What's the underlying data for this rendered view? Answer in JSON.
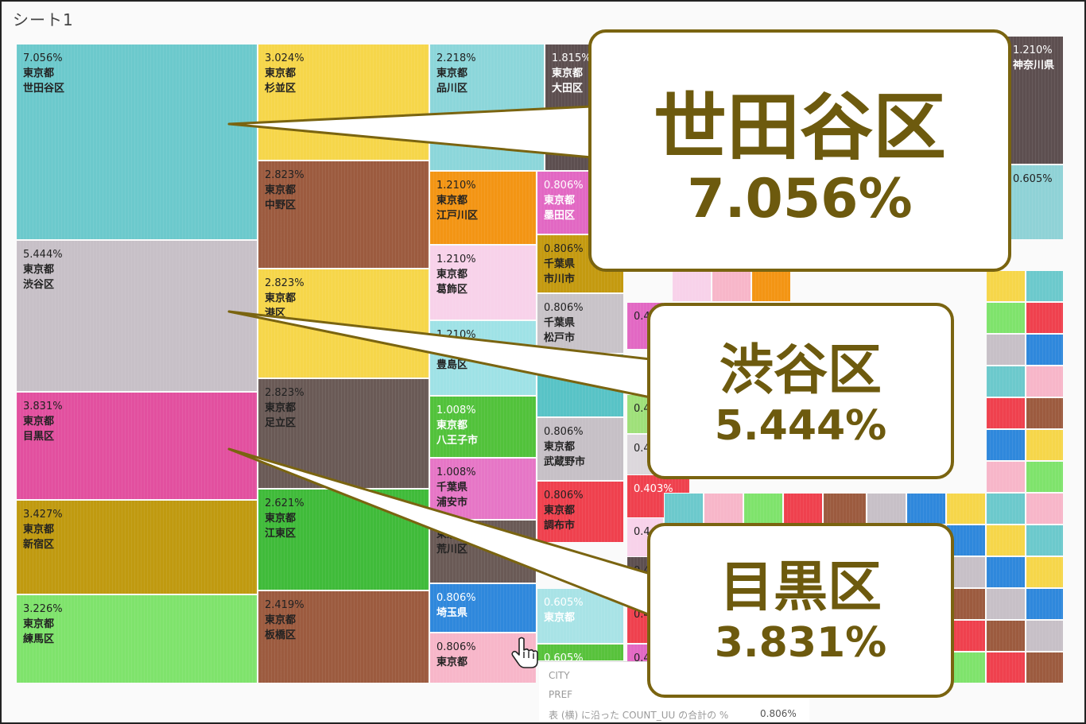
{
  "sheet_title": "シート1",
  "chart_data": {
    "type": "treemap",
    "tiles": [
      {
        "pct": "7.056%",
        "pref": "東京都",
        "name": "世田谷区",
        "value": 7.056,
        "color": "#6cc9cc"
      },
      {
        "pct": "5.444%",
        "pref": "東京都",
        "name": "渋谷区",
        "value": 5.444,
        "color": "#c7c0c7"
      },
      {
        "pct": "3.831%",
        "pref": "東京都",
        "name": "目黒区",
        "value": 3.831,
        "color": "#e2509f"
      },
      {
        "pct": "3.427%",
        "pref": "東京都",
        "name": "新宿区",
        "value": 3.427,
        "color": "#c09a10"
      },
      {
        "pct": "3.226%",
        "pref": "東京都",
        "name": "練馬区",
        "value": 3.226,
        "color": "#7fe36c"
      },
      {
        "pct": "3.024%",
        "pref": "東京都",
        "name": "杉並区",
        "value": 3.024,
        "color": "#f6d64a"
      },
      {
        "pct": "2.823%",
        "pref": "東京都",
        "name": "中野区",
        "value": 2.823,
        "color": "#9c5b3f"
      },
      {
        "pct": "2.823%",
        "pref": "東京都",
        "name": "港区",
        "value": 2.823,
        "color": "#f6d64a"
      },
      {
        "pct": "2.823%",
        "pref": "東京都",
        "name": "足立区",
        "value": 2.823,
        "color": "#6a5a56"
      },
      {
        "pct": "2.621%",
        "pref": "東京都",
        "name": "江東区",
        "value": 2.621,
        "color": "#40bb3a"
      },
      {
        "pct": "2.419%",
        "pref": "東京都",
        "name": "板橋区",
        "value": 2.419,
        "color": "#9c5b3f"
      },
      {
        "pct": "2.218%",
        "pref": "東京都",
        "name": "品川区",
        "value": 2.218,
        "color": "#8cd6da"
      },
      {
        "pct": "1.815%",
        "pref": "東京都",
        "name": "大田区",
        "value": 1.815,
        "color": "#5d4f50"
      },
      {
        "pct": "1.210%",
        "pref": "東京都",
        "name": "江戸川区",
        "value": 1.21,
        "color": "#f39514"
      },
      {
        "pct": "1.210%",
        "pref": "東京都",
        "name": "葛飾区",
        "value": 1.21,
        "color": "#f8d2ea"
      },
      {
        "pct": "1.210%",
        "pref": "東京都",
        "name": "豊島区",
        "value": 1.21,
        "color": "#9fe2e6"
      },
      {
        "pct": "1.008%",
        "pref": "東京都",
        "name": "八王子市",
        "value": 1.008,
        "color": "#52c23b"
      },
      {
        "pct": "1.008%",
        "pref": "千葉県",
        "name": "浦安市",
        "value": 1.008,
        "color": "#e676c6"
      },
      {
        "pct": "",
        "pref": "東京都",
        "name": "荒川区",
        "value": 1.008,
        "color": "#6a5a56"
      },
      {
        "pct": "0.806%",
        "pref": "",
        "name": "埼玉県",
        "value": 0.806,
        "color": "#2f88dc"
      },
      {
        "pct": "0.806%",
        "pref": "",
        "name": "東京都",
        "value": 0.806,
        "color": "#f7b6c9"
      },
      {
        "pct": "0.806%",
        "pref": "東京都",
        "name": "墨田区",
        "value": 0.806,
        "color": "#e268c3"
      },
      {
        "pct": "0.806%",
        "pref": "千葉県",
        "name": "市川市",
        "value": 0.806,
        "color": "#c49a10"
      },
      {
        "pct": "0.806%",
        "pref": "千葉県",
        "name": "松戸市",
        "value": 0.806,
        "color": "#c8c3c8"
      },
      {
        "pct": "",
        "pref": "",
        "name": "神奈川県",
        "value": 0.806,
        "color": "#58c3c6"
      },
      {
        "pct": "0.806%",
        "pref": "東京都",
        "name": "武蔵野市",
        "value": 0.806,
        "color": "#c6c0c6"
      },
      {
        "pct": "0.806%",
        "pref": "東京都",
        "name": "調布市",
        "value": 0.806,
        "color": "#ef414e"
      },
      {
        "pct": "0.605%",
        "pref": "",
        "name": "東京都",
        "value": 0.605,
        "color": "#a8e3e6"
      },
      {
        "pct": "0.605%",
        "pref": "",
        "name": "",
        "value": 0.605,
        "color": "#58c23c"
      },
      {
        "pct": "1.210%",
        "pref": "",
        "name": "神奈川県",
        "value": 1.21,
        "color": "#5d4f50"
      },
      {
        "pct": "0.605%",
        "pref": "",
        "name": "",
        "value": 0.605,
        "color": "#8fd2d6"
      },
      {
        "pct": "0.403%",
        "pref": "",
        "name": "",
        "value": 0.403,
        "color": "#ef414e"
      },
      {
        "pct": "0.4",
        "pref": "",
        "name": "",
        "value": 0.403,
        "color": "#e268c3"
      },
      {
        "pct": "0.4",
        "pref": "",
        "name": "",
        "value": 0.403,
        "color": "#9fe07a"
      },
      {
        "pct": "0.4",
        "pref": "",
        "name": "",
        "value": 0.403,
        "color": "#dcd7dc"
      },
      {
        "pct": "0.4",
        "pref": "",
        "name": "",
        "value": 0.403,
        "color": "#f8d2ea"
      },
      {
        "pct": "0.4",
        "pref": "",
        "name": "",
        "value": 0.403,
        "color": "#5d4f50"
      },
      {
        "pct": "0.4",
        "pref": "",
        "name": "",
        "value": 0.403,
        "color": "#ef414e"
      },
      {
        "pct": "0.4",
        "pref": "",
        "name": "",
        "value": 0.403,
        "color": "#e268c3"
      }
    ],
    "filler_palette": [
      "#ef414e",
      "#f39514",
      "#6cc9cc",
      "#e268c3",
      "#c7c0c7",
      "#5d4f50",
      "#7fe36c",
      "#f8d2ea",
      "#f6d64a",
      "#40bb3a",
      "#9c5b3f",
      "#a8e3e6",
      "#f7b6c9",
      "#c09a10",
      "#2f88dc",
      "#d9c7c4"
    ]
  },
  "tooltip": {
    "line1": "CITY",
    "line2": "PREF",
    "line3": "表 (横) に沿った COUNT_UU の合計の %",
    "line3_value": "0.806%"
  },
  "callouts": [
    {
      "name": "世田谷区",
      "pct": "7.056%"
    },
    {
      "name": "渋谷区",
      "pct": "5.444%"
    },
    {
      "name": "目黒区",
      "pct": "3.831%"
    }
  ],
  "colors": {
    "callout_border": "#7a6410",
    "callout_text": "#6d5a0e",
    "background": "#fafafa"
  }
}
